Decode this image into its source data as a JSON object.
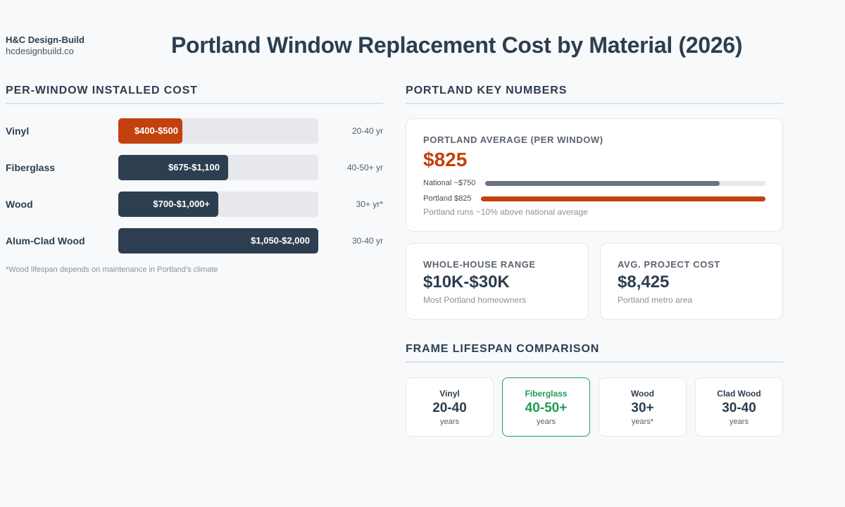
{
  "brand": {
    "name": "H&C Design-Build",
    "url": "hcdesignbuild.co"
  },
  "title": "Portland Window Replacement Cost by Material (2026)",
  "colors": {
    "accent": "#c2410c",
    "dark": "#2c3e50",
    "green": "#1f9d55",
    "national": "#6b7280"
  },
  "chart_data": [
    {
      "type": "bar",
      "orientation": "horizontal",
      "title": "PER-WINDOW INSTALLED COST",
      "categories": [
        "Vinyl",
        "Fiberglass",
        "Wood",
        "Alum-Clad Wood"
      ],
      "value_labels": [
        "$400-$500",
        "$675-$1,100",
        "$700-$1,000+",
        "$1,050-$2,000"
      ],
      "ranges": [
        [
          400,
          500
        ],
        [
          675,
          1100
        ],
        [
          700,
          1000
        ],
        [
          1050,
          2000
        ]
      ],
      "lifespans": [
        "20-40 yr",
        "40-50+ yr",
        "30+ yr*",
        "30-40 yr"
      ],
      "highlight_index": 0,
      "fill_fractions": [
        0.32,
        0.55,
        0.5,
        1.0
      ],
      "xlim": [
        0,
        2000
      ],
      "footnote": "*Wood lifespan depends on maintenance in Portland's climate"
    },
    {
      "type": "bar",
      "orientation": "horizontal",
      "title": "PORTLAND AVERAGE (PER WINDOW)",
      "categories": [
        "National ~$750",
        "Portland $825"
      ],
      "values": [
        750,
        825
      ],
      "xlim": [
        0,
        825
      ]
    }
  ],
  "key_numbers": {
    "section_title": "PORTLAND KEY NUMBERS",
    "average": {
      "label": "PORTLAND AVERAGE (PER WINDOW)",
      "value": "$825",
      "note": "Portland runs ~10% above national average"
    },
    "whole_house": {
      "label": "WHOLE-HOUSE RANGE",
      "value": "$10K-$30K",
      "note": "Most Portland homeowners"
    },
    "project": {
      "label": "AVG. PROJECT COST",
      "value": "$8,425",
      "note": "Portland metro area"
    }
  },
  "lifespan": {
    "section_title": "FRAME LIFESPAN COMPARISON",
    "items": [
      {
        "name": "Vinyl",
        "value": "20-40",
        "unit": "years"
      },
      {
        "name": "Fiberglass",
        "value": "40-50+",
        "unit": "years"
      },
      {
        "name": "Wood",
        "value": "30+",
        "unit": "years*"
      },
      {
        "name": "Clad Wood",
        "value": "30-40",
        "unit": "years"
      }
    ]
  }
}
